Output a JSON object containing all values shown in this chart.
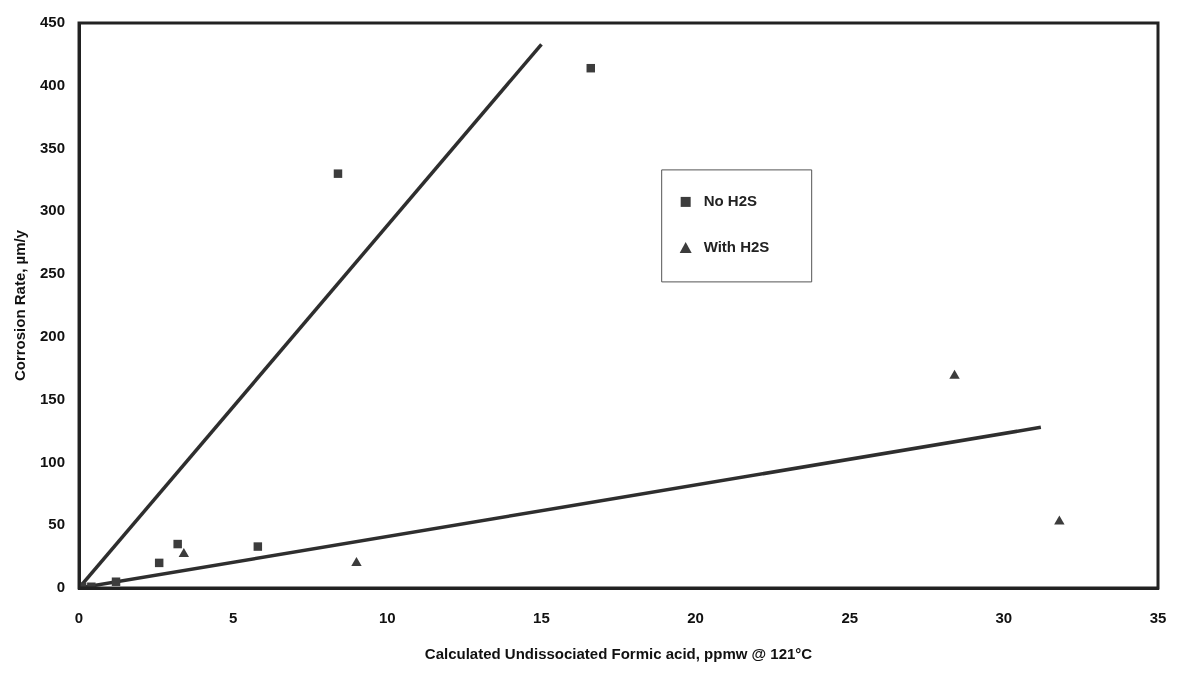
{
  "chart_data": {
    "type": "scatter",
    "xlabel": "Calculated Undissociated Formic acid, ppmw @ 121°C",
    "ylabel": "Corrosion Rate, µm/y",
    "xlim": [
      0,
      35
    ],
    "xticks": [
      0,
      5,
      10,
      15,
      20,
      25,
      30,
      35
    ],
    "ylim": [
      0,
      450
    ],
    "yticks": [
      0,
      50,
      100,
      150,
      200,
      250,
      300,
      350,
      400,
      450
    ],
    "grid": false,
    "legend": "top right",
    "series": [
      {
        "name": "No H2S",
        "marker": "square",
        "color": "#3c3c3c",
        "x": [
          0.1,
          0.4,
          1.2,
          2.6,
          3.2,
          5.8,
          8.4,
          16.6
        ],
        "values": [
          1,
          1,
          5,
          20,
          35,
          33,
          330,
          414
        ]
      },
      {
        "name": "With H2S",
        "marker": "triangle",
        "color": "#3c3c3c",
        "x": [
          3.4,
          9.0,
          28.4,
          31.8
        ],
        "values": [
          27,
          20,
          169,
          53
        ]
      },
      {
        "type": "line",
        "marker": "none",
        "color": "#2e2e2e",
        "x": [
          0,
          15
        ],
        "values": [
          0,
          433
        ]
      },
      {
        "type": "line",
        "marker": "none",
        "color": "#2e2e2e",
        "x": [
          0,
          31.2
        ],
        "values": [
          0,
          128
        ]
      }
    ]
  }
}
